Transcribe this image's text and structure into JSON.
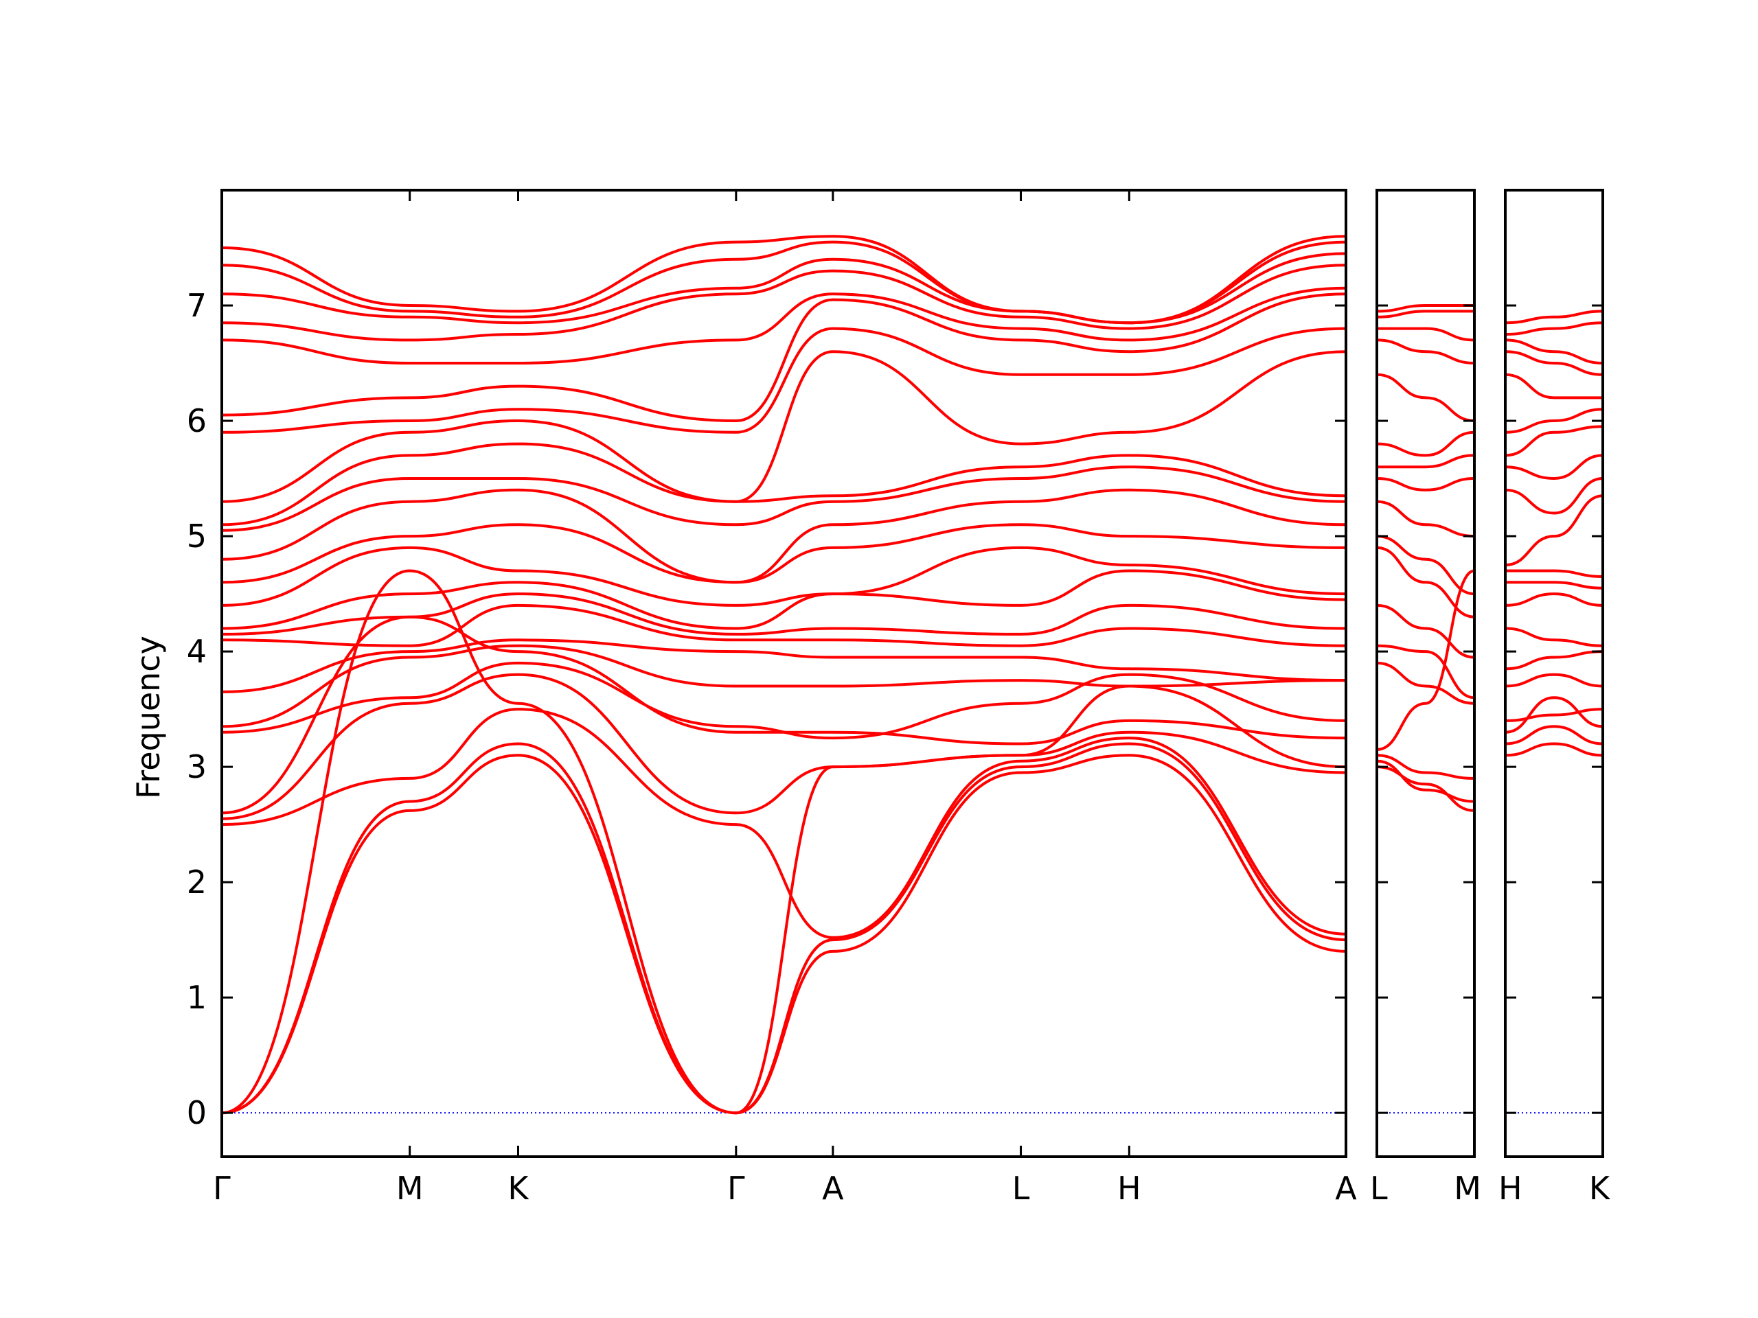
{
  "chart_data": {
    "type": "line",
    "ylabel": "Frequency",
    "ylim": [
      -0.38,
      8.0
    ],
    "yticks": [
      0,
      1,
      2,
      3,
      4,
      5,
      6,
      7
    ],
    "grid": false,
    "colors": {
      "band": "#ff0000",
      "zero_line": "#0000ff",
      "axes": "#000000"
    },
    "panels": [
      {
        "name": "main",
        "x_range": [
          0,
          9.75
        ],
        "xticks": [
          {
            "label": "Γ",
            "x": 0
          },
          {
            "label": "M",
            "x": 1.63
          },
          {
            "label": "K",
            "x": 2.57
          },
          {
            "label": "Γ",
            "x": 4.46
          },
          {
            "label": "A",
            "x": 5.3
          },
          {
            "label": "L",
            "x": 6.93
          },
          {
            "label": "H",
            "x": 7.87
          },
          {
            "label": "A",
            "x": 9.75
          }
        ]
      },
      {
        "name": "L-M",
        "x_range": [
          0,
          1.0
        ],
        "xticks": [
          {
            "label": "L",
            "x": 0
          },
          {
            "label": "M",
            "x": 1.0
          }
        ]
      },
      {
        "name": "H-K",
        "x_range": [
          0,
          1.0
        ],
        "xticks": [
          {
            "label": "H",
            "x": 0
          },
          {
            "label": "K",
            "x": 1.0
          }
        ]
      }
    ],
    "series_main": [
      {
        "x": [
          0,
          1.63,
          2.57,
          4.46,
          5.3,
          6.93,
          7.87,
          9.75
        ],
        "y": [
          0,
          2.62,
          3.1,
          0,
          1.4,
          2.95,
          3.1,
          1.4
        ]
      },
      {
        "x": [
          0,
          1.63,
          2.57,
          4.46,
          5.3,
          6.93,
          7.87,
          9.75
        ],
        "y": [
          0,
          2.7,
          3.2,
          0,
          1.5,
          3.0,
          3.2,
          1.5
        ]
      },
      {
        "x": [
          0,
          1.63,
          2.57,
          4.46,
          5.3,
          6.93,
          7.87,
          9.75
        ],
        "y": [
          0,
          4.7,
          3.55,
          0,
          3.0,
          3.1,
          3.3,
          2.95
        ]
      },
      {
        "x": [
          0,
          1.63,
          2.57,
          4.46,
          5.3,
          6.93,
          7.87,
          9.75
        ],
        "y": [
          2.5,
          2.9,
          3.5,
          2.5,
          1.52,
          3.05,
          3.25,
          1.55
        ]
      },
      {
        "x": [
          0,
          1.63,
          2.57,
          4.46,
          5.3,
          6.93,
          7.87,
          9.75
        ],
        "y": [
          2.55,
          3.55,
          3.8,
          2.6,
          3.0,
          3.1,
          3.7,
          3.0
        ]
      },
      {
        "x": [
          0,
          1.63,
          2.57,
          4.46,
          5.3,
          6.93,
          7.87,
          9.75
        ],
        "y": [
          2.6,
          4.3,
          4.0,
          3.3,
          3.3,
          3.2,
          3.4,
          3.25
        ]
      },
      {
        "x": [
          0,
          1.63,
          2.57,
          4.46,
          5.3,
          6.93,
          7.87,
          9.75
        ],
        "y": [
          3.3,
          3.6,
          3.9,
          3.35,
          3.25,
          3.55,
          3.8,
          3.4
        ]
      },
      {
        "x": [
          0,
          1.63,
          2.57,
          4.46,
          5.3,
          6.93,
          7.87,
          9.75
        ],
        "y": [
          3.35,
          3.95,
          4.05,
          3.7,
          3.7,
          3.75,
          3.7,
          3.75
        ]
      },
      {
        "x": [
          0,
          1.63,
          2.57,
          4.46,
          5.3,
          6.93,
          7.87,
          9.75
        ],
        "y": [
          3.65,
          4.0,
          4.1,
          4.0,
          3.95,
          3.95,
          3.85,
          3.75
        ]
      },
      {
        "x": [
          0,
          1.63,
          2.57,
          4.46,
          5.3,
          6.93,
          7.87,
          9.75
        ],
        "y": [
          4.1,
          4.05,
          4.4,
          4.1,
          4.1,
          4.05,
          4.2,
          4.05
        ]
      },
      {
        "x": [
          0,
          1.63,
          2.57,
          4.46,
          5.3,
          6.93,
          7.87,
          9.75
        ],
        "y": [
          4.15,
          4.3,
          4.5,
          4.15,
          4.2,
          4.15,
          4.4,
          4.2
        ]
      },
      {
        "x": [
          0,
          1.63,
          2.57,
          4.46,
          5.3,
          6.93,
          7.87,
          9.75
        ],
        "y": [
          4.2,
          4.5,
          4.6,
          4.2,
          4.5,
          4.4,
          4.7,
          4.45
        ]
      },
      {
        "x": [
          0,
          1.63,
          2.57,
          4.46,
          5.3,
          6.93,
          7.87,
          9.75
        ],
        "y": [
          4.4,
          4.9,
          4.7,
          4.4,
          4.5,
          4.9,
          4.75,
          4.5
        ]
      },
      {
        "x": [
          0,
          1.63,
          2.57,
          4.46,
          5.3,
          6.93,
          7.87,
          9.75
        ],
        "y": [
          4.6,
          5.0,
          5.1,
          4.6,
          4.9,
          5.1,
          5.0,
          4.9
        ]
      },
      {
        "x": [
          0,
          1.63,
          2.57,
          4.46,
          5.3,
          6.93,
          7.87,
          9.75
        ],
        "y": [
          4.8,
          5.3,
          5.4,
          4.6,
          5.1,
          5.3,
          5.4,
          5.1
        ]
      },
      {
        "x": [
          0,
          1.63,
          2.57,
          4.46,
          5.3,
          6.93,
          7.87,
          9.75
        ],
        "y": [
          5.05,
          5.5,
          5.5,
          5.1,
          5.3,
          5.5,
          5.6,
          5.3
        ]
      },
      {
        "x": [
          0,
          1.63,
          2.57,
          4.46,
          5.3,
          6.93,
          7.87,
          9.75
        ],
        "y": [
          5.1,
          5.7,
          5.8,
          5.3,
          5.35,
          5.6,
          5.7,
          5.35
        ]
      },
      {
        "x": [
          0,
          1.63,
          2.57,
          4.46,
          5.3,
          6.93,
          7.87,
          9.75
        ],
        "y": [
          5.3,
          5.9,
          6.0,
          5.3,
          6.6,
          5.8,
          5.9,
          6.6
        ]
      },
      {
        "x": [
          0,
          1.63,
          2.57,
          4.46,
          5.3,
          6.93,
          7.87,
          9.75
        ],
        "y": [
          5.9,
          6.0,
          6.1,
          5.9,
          6.8,
          6.4,
          6.4,
          6.8
        ]
      },
      {
        "x": [
          0,
          1.63,
          2.57,
          4.46,
          5.3,
          6.93,
          7.87,
          9.75
        ],
        "y": [
          6.05,
          6.2,
          6.3,
          6.0,
          7.05,
          6.7,
          6.6,
          7.1
        ]
      },
      {
        "x": [
          0,
          1.63,
          2.57,
          4.46,
          5.3,
          6.93,
          7.87,
          9.75
        ],
        "y": [
          6.7,
          6.5,
          6.5,
          6.7,
          7.1,
          6.8,
          6.7,
          7.15
        ]
      },
      {
        "x": [
          0,
          1.63,
          2.57,
          4.46,
          5.3,
          6.93,
          7.87,
          9.75
        ],
        "y": [
          6.85,
          6.7,
          6.75,
          7.1,
          7.3,
          6.9,
          6.8,
          7.35
        ]
      },
      {
        "x": [
          0,
          1.63,
          2.57,
          4.46,
          5.3,
          6.93,
          7.87,
          9.75
        ],
        "y": [
          7.1,
          6.9,
          6.85,
          7.15,
          7.4,
          6.95,
          6.85,
          7.45
        ]
      },
      {
        "x": [
          0,
          1.63,
          2.57,
          4.46,
          5.3,
          6.93,
          7.87,
          9.75
        ],
        "y": [
          7.35,
          6.95,
          6.9,
          7.4,
          7.55,
          6.95,
          6.85,
          7.55
        ]
      },
      {
        "x": [
          0,
          1.63,
          2.57,
          4.46,
          5.3,
          6.93,
          7.87,
          9.75
        ],
        "y": [
          7.5,
          7.0,
          6.95,
          7.55,
          7.6,
          6.95,
          6.85,
          7.6
        ]
      }
    ],
    "series_lm": [
      {
        "x": [
          0,
          0.5,
          1
        ],
        "y": [
          3.0,
          2.85,
          2.62
        ]
      },
      {
        "x": [
          0,
          0.5,
          1
        ],
        "y": [
          3.05,
          2.8,
          2.7
        ]
      },
      {
        "x": [
          0,
          0.5,
          1
        ],
        "y": [
          3.1,
          2.95,
          2.9
        ]
      },
      {
        "x": [
          0,
          0.5,
          1
        ],
        "y": [
          3.15,
          3.55,
          4.7
        ]
      },
      {
        "x": [
          0,
          0.5,
          1
        ],
        "y": [
          3.9,
          3.7,
          3.55
        ]
      },
      {
        "x": [
          0,
          0.5,
          1
        ],
        "y": [
          4.05,
          4.0,
          3.6
        ]
      },
      {
        "x": [
          0,
          0.5,
          1
        ],
        "y": [
          4.4,
          4.2,
          3.95
        ]
      },
      {
        "x": [
          0,
          0.5,
          1
        ],
        "y": [
          4.9,
          4.6,
          4.3
        ]
      },
      {
        "x": [
          0,
          0.5,
          1
        ],
        "y": [
          5.0,
          4.8,
          4.5
        ]
      },
      {
        "x": [
          0,
          0.5,
          1
        ],
        "y": [
          5.3,
          5.1,
          5.0
        ]
      },
      {
        "x": [
          0,
          0.5,
          1
        ],
        "y": [
          5.5,
          5.4,
          5.5
        ]
      },
      {
        "x": [
          0,
          0.5,
          1
        ],
        "y": [
          5.6,
          5.6,
          5.7
        ]
      },
      {
        "x": [
          0,
          0.5,
          1
        ],
        "y": [
          5.8,
          5.7,
          5.9
        ]
      },
      {
        "x": [
          0,
          0.5,
          1
        ],
        "y": [
          6.4,
          6.2,
          6.0
        ]
      },
      {
        "x": [
          0,
          0.5,
          1
        ],
        "y": [
          6.7,
          6.6,
          6.5
        ]
      },
      {
        "x": [
          0,
          0.5,
          1
        ],
        "y": [
          6.8,
          6.8,
          6.7
        ]
      },
      {
        "x": [
          0,
          0.5,
          1
        ],
        "y": [
          6.9,
          6.95,
          6.95
        ]
      },
      {
        "x": [
          0,
          0.5,
          1
        ],
        "y": [
          6.95,
          7.0,
          7.0
        ]
      }
    ],
    "series_hk": [
      {
        "x": [
          0,
          0.5,
          1
        ],
        "y": [
          3.1,
          3.2,
          3.1
        ]
      },
      {
        "x": [
          0,
          0.5,
          1
        ],
        "y": [
          3.2,
          3.35,
          3.2
        ]
      },
      {
        "x": [
          0,
          0.5,
          1
        ],
        "y": [
          3.3,
          3.6,
          3.35
        ]
      },
      {
        "x": [
          0,
          0.5,
          1
        ],
        "y": [
          3.4,
          3.45,
          3.5
        ]
      },
      {
        "x": [
          0,
          0.5,
          1
        ],
        "y": [
          3.7,
          3.8,
          3.7
        ]
      },
      {
        "x": [
          0,
          0.5,
          1
        ],
        "y": [
          3.85,
          3.95,
          4.0
        ]
      },
      {
        "x": [
          0,
          0.5,
          1
        ],
        "y": [
          4.2,
          4.1,
          4.05
        ]
      },
      {
        "x": [
          0,
          0.5,
          1
        ],
        "y": [
          4.4,
          4.5,
          4.4
        ]
      },
      {
        "x": [
          0,
          0.5,
          1
        ],
        "y": [
          4.6,
          4.6,
          4.55
        ]
      },
      {
        "x": [
          0,
          0.5,
          1
        ],
        "y": [
          4.7,
          4.7,
          4.65
        ]
      },
      {
        "x": [
          0,
          0.5,
          1
        ],
        "y": [
          4.75,
          5.0,
          5.35
        ]
      },
      {
        "x": [
          0,
          0.5,
          1
        ],
        "y": [
          5.4,
          5.2,
          5.5
        ]
      },
      {
        "x": [
          0,
          0.5,
          1
        ],
        "y": [
          5.6,
          5.5,
          5.7
        ]
      },
      {
        "x": [
          0,
          0.5,
          1
        ],
        "y": [
          5.7,
          5.9,
          5.95
        ]
      },
      {
        "x": [
          0,
          0.5,
          1
        ],
        "y": [
          5.9,
          6.0,
          6.1
        ]
      },
      {
        "x": [
          0,
          0.5,
          1
        ],
        "y": [
          6.4,
          6.2,
          6.2
        ]
      },
      {
        "x": [
          0,
          0.5,
          1
        ],
        "y": [
          6.6,
          6.5,
          6.4
        ]
      },
      {
        "x": [
          0,
          0.5,
          1
        ],
        "y": [
          6.7,
          6.6,
          6.5
        ]
      },
      {
        "x": [
          0,
          0.5,
          1
        ],
        "y": [
          6.75,
          6.8,
          6.85
        ]
      },
      {
        "x": [
          0,
          0.5,
          1
        ],
        "y": [
          6.85,
          6.9,
          6.95
        ]
      }
    ]
  }
}
